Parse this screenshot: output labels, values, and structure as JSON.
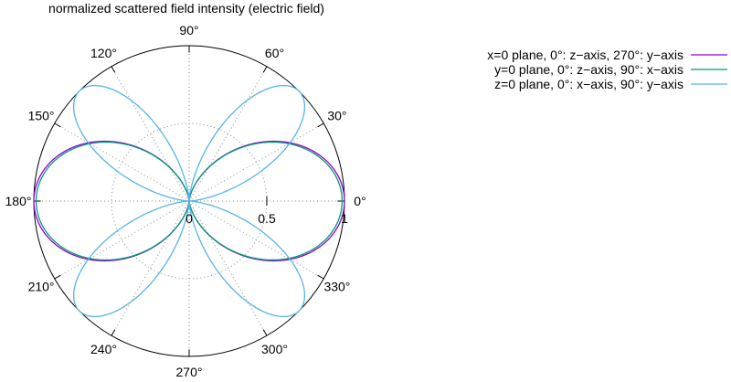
{
  "chart_data": {
    "type": "polar-line",
    "title": "normalized scattered field intensity (electric field)",
    "rlim": [
      0,
      1
    ],
    "radial_ticks": [
      0,
      0.5,
      1
    ],
    "radial_tick_labels": [
      "0",
      "0.5",
      "1"
    ],
    "angle_ticks": [
      0,
      30,
      60,
      90,
      120,
      150,
      180,
      210,
      240,
      270,
      300,
      330
    ],
    "angle_tick_labels": [
      "0°",
      "30°",
      "60°",
      "90°",
      "120°",
      "150°",
      "180°",
      "210°",
      "240°",
      "270°",
      "300°",
      "330°"
    ],
    "grid": true,
    "legend_placement": "top-right",
    "series": [
      {
        "name": "x=0 plane, 0°: z−axis, 270°: y−axis",
        "color": "#9400d3",
        "shape": "dipole",
        "theta_deg": [
          0,
          15,
          30,
          45,
          60,
          75,
          90,
          105,
          120,
          135,
          150,
          165,
          180,
          195,
          210,
          225,
          240,
          255,
          270,
          285,
          300,
          315,
          330,
          345
        ],
        "r": [
          1.0,
          0.93,
          0.75,
          0.5,
          0.25,
          0.07,
          0.0,
          0.07,
          0.25,
          0.5,
          0.75,
          0.93,
          1.0,
          0.93,
          0.75,
          0.5,
          0.25,
          0.07,
          0.0,
          0.07,
          0.25,
          0.5,
          0.75,
          0.93
        ]
      },
      {
        "name": "y=0 plane, 0°: z−axis,   90°: x−axis",
        "color": "#009e73",
        "shape": "dipole",
        "theta_deg": [
          0,
          15,
          30,
          45,
          60,
          75,
          90,
          105,
          120,
          135,
          150,
          165,
          180,
          195,
          210,
          225,
          240,
          255,
          270,
          285,
          300,
          315,
          330,
          345
        ],
        "r": [
          0.985,
          0.92,
          0.74,
          0.49,
          0.25,
          0.07,
          0.0,
          0.07,
          0.25,
          0.49,
          0.74,
          0.92,
          0.985,
          0.92,
          0.74,
          0.49,
          0.25,
          0.07,
          0.0,
          0.07,
          0.25,
          0.49,
          0.74,
          0.92
        ]
      },
      {
        "name": "z=0 plane, 0°: x−axis,   90°: y−axis",
        "color": "#56b4e9",
        "shape": "quadrupole",
        "theta_deg": [
          0,
          15,
          30,
          45,
          60,
          75,
          90,
          105,
          120,
          135,
          150,
          165,
          180,
          195,
          210,
          225,
          240,
          255,
          270,
          285,
          300,
          315,
          330,
          345
        ],
        "r": [
          0.0,
          0.5,
          0.86,
          1.0,
          0.86,
          0.5,
          0.0,
          0.5,
          0.86,
          1.0,
          0.86,
          0.5,
          0.0,
          0.5,
          0.86,
          1.0,
          0.86,
          0.5,
          0.0,
          0.5,
          0.86,
          1.0,
          0.86,
          0.5
        ]
      }
    ]
  }
}
